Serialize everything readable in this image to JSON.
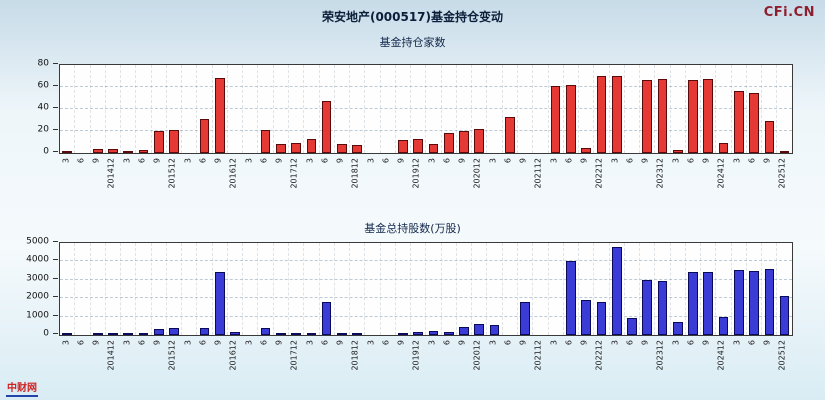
{
  "page": {
    "title": "荣安地产(000517)基金持仓变动",
    "watermark": "CFi.CN",
    "footer_logo": "中财网"
  },
  "colors": {
    "background_top": "#c7dbe8",
    "background_bottom": "#d9ecf4",
    "bar_red": "#e53935",
    "bar_red_border": "#5a0a0a",
    "bar_blue": "#3b3bd6",
    "bar_blue_border": "#0a0a5a",
    "logo_red": "#8e1f2f"
  },
  "chart_data": [
    {
      "type": "bar",
      "title": "基金持仓家数",
      "categories": [
        "3",
        "6",
        "9",
        "201412",
        "3",
        "6",
        "9",
        "201512",
        "3",
        "6",
        "9",
        "201612",
        "3",
        "6",
        "9",
        "201712",
        "3",
        "6",
        "9",
        "201812",
        "3",
        "6",
        "9",
        "201912",
        "3",
        "6",
        "9",
        "202012",
        "3",
        "6",
        "9",
        "202112",
        "3",
        "6",
        "9",
        "202212",
        "3",
        "6",
        "9",
        "202312",
        "3",
        "6",
        "9",
        "202412",
        "3",
        "6",
        "9",
        "202512"
      ],
      "values": [
        1,
        0,
        4,
        4,
        2,
        3,
        20,
        21,
        0,
        31,
        68,
        0,
        0,
        21,
        8,
        9,
        13,
        47,
        8,
        7,
        0,
        0,
        12,
        13,
        8,
        18,
        20,
        22,
        0,
        33,
        0,
        0,
        61,
        62,
        5,
        70,
        70,
        0,
        66,
        67,
        3,
        66,
        67,
        9,
        56,
        55,
        29,
        1
      ],
      "xlabel": "",
      "ylabel": "",
      "ylim": [
        0,
        80
      ],
      "yticks": [
        0,
        20,
        40,
        60,
        80
      ],
      "grid": true,
      "legend": "none",
      "bar_color": "#e53935",
      "bar_border": "#5a0a0a"
    },
    {
      "type": "bar",
      "title": "基金总持股数(万股)",
      "categories": [
        "3",
        "6",
        "9",
        "201412",
        "3",
        "6",
        "9",
        "201512",
        "3",
        "6",
        "9",
        "201612",
        "3",
        "6",
        "9",
        "201712",
        "3",
        "6",
        "9",
        "201812",
        "3",
        "6",
        "9",
        "201912",
        "3",
        "6",
        "9",
        "202012",
        "3",
        "6",
        "9",
        "202112",
        "3",
        "6",
        "9",
        "202212",
        "3",
        "6",
        "9",
        "202312",
        "3",
        "6",
        "9",
        "202412",
        "3",
        "6",
        "9",
        "202512"
      ],
      "values": [
        20,
        0,
        50,
        60,
        40,
        50,
        300,
        400,
        0,
        400,
        3400,
        150,
        0,
        400,
        100,
        80,
        100,
        1800,
        80,
        60,
        0,
        0,
        100,
        150,
        200,
        150,
        450,
        600,
        550,
        0,
        1800,
        0,
        0,
        4000,
        1900,
        1800,
        4800,
        900,
        3000,
        2950,
        700,
        3450,
        3400,
        1000,
        3550,
        3500,
        3600,
        2100
      ],
      "xlabel": "",
      "ylabel": "",
      "ylim": [
        0,
        5000
      ],
      "yticks": [
        0,
        1000,
        2000,
        3000,
        4000,
        5000
      ],
      "grid": true,
      "legend": "none",
      "bar_color": "#3b3bd6",
      "bar_border": "#0a0a5a"
    }
  ]
}
